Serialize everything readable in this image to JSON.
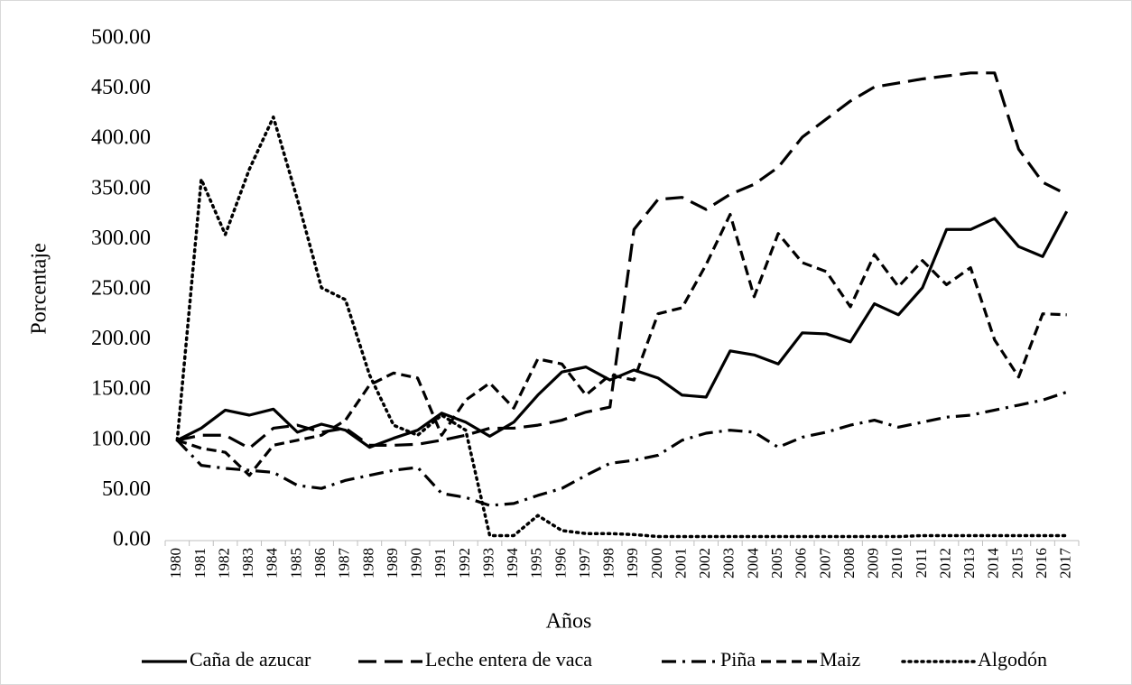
{
  "chart_data": {
    "type": "line",
    "x_label": "Años",
    "y_label": "Porcentaje",
    "categories": [
      "1980",
      "1981",
      "1982",
      "1983",
      "1984",
      "1985",
      "1986",
      "1987",
      "1988",
      "1989",
      "1990",
      "1991",
      "1992",
      "1993",
      "1994",
      "1995",
      "1996",
      "1997",
      "1998",
      "1999",
      "2000",
      "2001",
      "2002",
      "2003",
      "2004",
      "2005",
      "2006",
      "2007",
      "2008",
      "2009",
      "2010",
      "2011",
      "2012",
      "2013",
      "2014",
      "2015",
      "2016",
      "2017"
    ],
    "ylim": [
      0,
      500
    ],
    "yticks": [
      {
        "value": 0,
        "label": "0.00"
      },
      {
        "value": 50,
        "label": "50.00"
      },
      {
        "value": 100,
        "label": "100.00"
      },
      {
        "value": 150,
        "label": "150.00"
      },
      {
        "value": 200,
        "label": "200.00"
      },
      {
        "value": 250,
        "label": "250.00"
      },
      {
        "value": 300,
        "label": "300.00"
      },
      {
        "value": 350,
        "label": "350.00"
      },
      {
        "value": 400,
        "label": "400.00"
      },
      {
        "value": 450,
        "label": "450.00"
      },
      {
        "value": 500,
        "label": "500.00"
      }
    ],
    "legend": "bottom",
    "series": [
      {
        "name": "Caña de azucar",
        "color": "#000000",
        "style": "solid",
        "values": [
          100,
          112,
          130,
          125,
          131,
          108,
          116,
          110,
          93,
          102,
          110,
          127,
          118,
          104,
          118,
          145,
          168,
          173,
          160,
          170,
          162,
          145,
          143,
          189,
          185,
          176,
          207,
          206,
          198,
          236,
          225,
          252,
          310,
          310,
          321,
          293,
          283,
          328
        ]
      },
      {
        "name": "Leche entera de vaca",
        "color": "#000000",
        "style": "long-dash",
        "values": [
          100,
          105,
          105,
          92,
          112,
          115,
          108,
          112,
          95,
          95,
          96,
          100,
          105,
          112,
          112,
          115,
          120,
          128,
          133,
          310,
          340,
          342,
          330,
          345,
          355,
          372,
          402,
          420,
          438,
          452,
          456,
          460,
          463,
          466,
          466,
          390,
          357,
          345
        ]
      },
      {
        "name": "Piña",
        "color": "#000000",
        "style": "dash-dot",
        "values": [
          100,
          75,
          72,
          70,
          68,
          55,
          52,
          60,
          65,
          70,
          73,
          47,
          43,
          35,
          37,
          45,
          52,
          65,
          77,
          80,
          85,
          100,
          107,
          110,
          108,
          93,
          103,
          108,
          115,
          120,
          113,
          118,
          123,
          125,
          130,
          135,
          140,
          148
        ]
      },
      {
        "name": "Maiz",
        "color": "#000000",
        "style": "dash",
        "values": [
          100,
          92,
          88,
          65,
          95,
          100,
          105,
          120,
          155,
          167,
          162,
          105,
          140,
          157,
          132,
          181,
          176,
          145,
          165,
          160,
          226,
          232,
          275,
          325,
          243,
          306,
          277,
          268,
          233,
          285,
          253,
          279,
          255,
          272,
          200,
          163,
          226,
          225
        ]
      },
      {
        "name": "Algodón",
        "color": "#000000",
        "style": "dot",
        "values": [
          100,
          360,
          305,
          370,
          422,
          340,
          252,
          240,
          165,
          115,
          105,
          125,
          110,
          5,
          5,
          25,
          10,
          7,
          7,
          6,
          4,
          4,
          4,
          4,
          4,
          4,
          4,
          4,
          4,
          4,
          4,
          5,
          5,
          5,
          5,
          5,
          5,
          5
        ]
      }
    ]
  }
}
